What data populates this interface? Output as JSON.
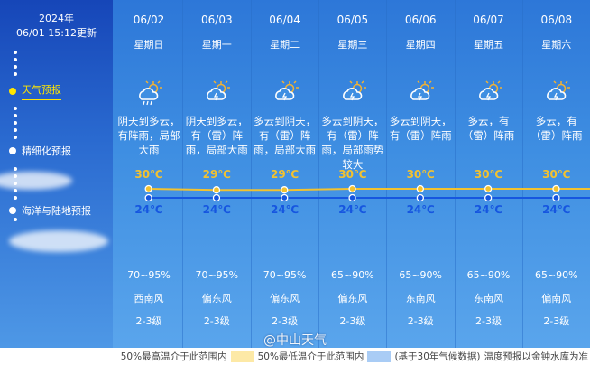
{
  "sidebar": {
    "year": "2024年",
    "updated": "06/01 15:12更新",
    "items": [
      {
        "label": "天气预报",
        "active": true
      },
      {
        "label": "精细化预报"
      },
      {
        "label": "海洋与陆地预报"
      }
    ]
  },
  "days": [
    {
      "date": "06/02",
      "weekday": "星期日",
      "icon": "cloud-sun-rain-icon",
      "desc": "阴天到多云，有阵雨，局部大雨",
      "high": "30℃",
      "low": "24℃",
      "humidity": "70~95%",
      "wind": "西南风",
      "level": "2-3级"
    },
    {
      "date": "06/03",
      "weekday": "星期一",
      "icon": "cloud-sun-thunder-icon",
      "desc": "阴天到多云，有（雷）阵雨，局部大雨",
      "high": "29℃",
      "low": "24℃",
      "humidity": "70~95%",
      "wind": "偏东风",
      "level": "2-3级"
    },
    {
      "date": "06/04",
      "weekday": "星期二",
      "icon": "cloud-sun-thunder-icon",
      "desc": "多云到阴天，有（雷）阵雨，局部大雨",
      "high": "29℃",
      "low": "24℃",
      "humidity": "70~95%",
      "wind": "偏东风",
      "level": "2-3级"
    },
    {
      "date": "06/05",
      "weekday": "星期三",
      "icon": "cloud-sun-thunder-icon",
      "desc": "多云到阴天，有（雷）阵雨，局部雨势较大",
      "high": "30℃",
      "low": "24℃",
      "humidity": "65~90%",
      "wind": "偏东风",
      "level": "2-3级"
    },
    {
      "date": "06/06",
      "weekday": "星期四",
      "icon": "cloud-sun-thunder-icon",
      "desc": "多云到阴天，有（雷）阵雨",
      "high": "30℃",
      "low": "24℃",
      "humidity": "65~90%",
      "wind": "东南风",
      "level": "2-3级"
    },
    {
      "date": "06/07",
      "weekday": "星期五",
      "icon": "cloud-sun-thunder-icon",
      "desc": "多云，有（雷）阵雨",
      "high": "30℃",
      "low": "24℃",
      "humidity": "65~90%",
      "wind": "东南风",
      "level": "2-3级"
    },
    {
      "date": "06/08",
      "weekday": "星期六",
      "icon": "cloud-sun-thunder-icon",
      "desc": "多云，有（雷）阵雨",
      "high": "30℃",
      "low": "24℃",
      "humidity": "65~90%",
      "wind": "偏南风",
      "level": "2-3级"
    }
  ],
  "temps": {
    "high": [
      30,
      29,
      29,
      30,
      30,
      30,
      30
    ],
    "low": [
      24,
      24,
      24,
      24,
      24,
      24,
      24
    ],
    "high_color": "#f2c230",
    "low_color": "#1656e0"
  },
  "legend": {
    "high_range": "50%最高温介于此范围内",
    "high_color": "#fde9a6",
    "low_range": "50%最低温介于此范围内",
    "low_color": "#a9ccf5",
    "basis": "(基于30年气候数据)",
    "note": "温度预报以金钟水库为准"
  },
  "watermark": "@中山天气"
}
